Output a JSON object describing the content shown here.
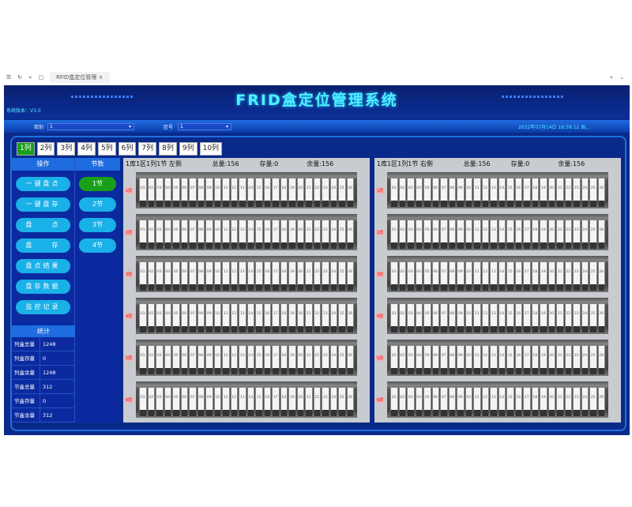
{
  "browser": {
    "tab_title": "RFID盒定位管理"
  },
  "header": {
    "title": "FRID盒定位管理系统",
    "version": "系统版本：V3.0"
  },
  "filters": {
    "warehouse_label": "库别",
    "warehouse_value": "1",
    "zone_label": "区号",
    "zone_value": "1",
    "datetime": "2022年07月14日 16:59:12 周..."
  },
  "tabs": [
    "1列",
    "2列",
    "3列",
    "4列",
    "5列",
    "6列",
    "7列",
    "8列",
    "9列",
    "10列"
  ],
  "active_tab": 0,
  "operations": {
    "header": "操作",
    "items": [
      "一键盘点",
      "一键盘存",
      "盘　　点",
      "盘　　存",
      "盘点结果",
      "盘存数据",
      "监控记录"
    ]
  },
  "sections": {
    "header": "节数",
    "items": [
      "1节",
      "2节",
      "3节",
      "4节"
    ],
    "active": 0
  },
  "stats": {
    "header": "统计",
    "rows": [
      {
        "label": "列盒总量",
        "value": "1248"
      },
      {
        "label": "列盒存量",
        "value": "0"
      },
      {
        "label": "列盒余量",
        "value": "1248"
      },
      {
        "label": "节盒总量",
        "value": "312"
      },
      {
        "label": "节盒存量",
        "value": "0"
      },
      {
        "label": "节盒余量",
        "value": "312"
      }
    ]
  },
  "panels": [
    {
      "title": "1库1区1列1节 左侧",
      "total": "总量:156",
      "stock": "存量:0",
      "remain": "余量:156"
    },
    {
      "title": "1库1区1列1节 右侧",
      "total": "总量:156",
      "stock": "存量:0",
      "remain": "余量:156"
    }
  ],
  "shelf_layers": [
    "1层",
    "2层",
    "3层",
    "4层",
    "5层",
    "6层"
  ],
  "boxes_per_layer": 26,
  "colors": {
    "accent": "#4ff0ff",
    "active": "#18a018",
    "button": "#1ab0e8",
    "background": "#0a2a8a"
  }
}
